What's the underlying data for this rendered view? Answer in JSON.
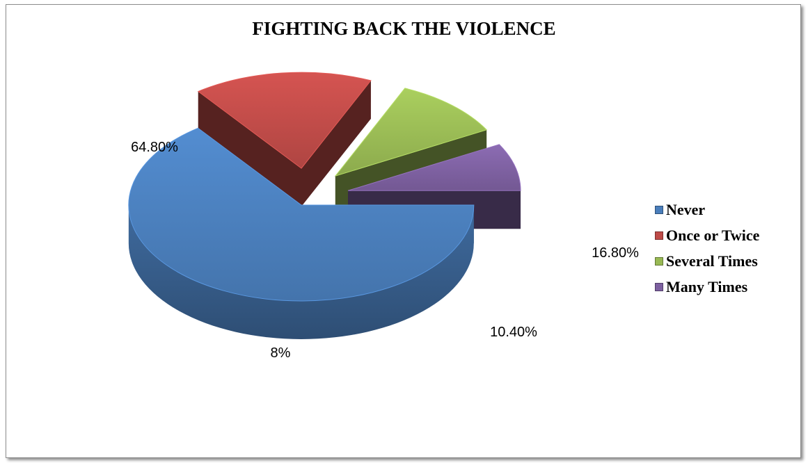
{
  "chart_data": {
    "type": "pie",
    "title": "FIGHTING BACK THE VIOLENCE",
    "categories": [
      "Never",
      "Once or Twice",
      "Several Times",
      "Many Times"
    ],
    "values": [
      64.8,
      16.8,
      10.4,
      8
    ],
    "data_labels": [
      "64.80%",
      "16.80%",
      "10.40%",
      "8%"
    ],
    "colors": [
      "#4a7ebb",
      "#be4b48",
      "#98b954",
      "#7d60a0"
    ],
    "legend_position": "right",
    "style": "3d-exploded"
  }
}
